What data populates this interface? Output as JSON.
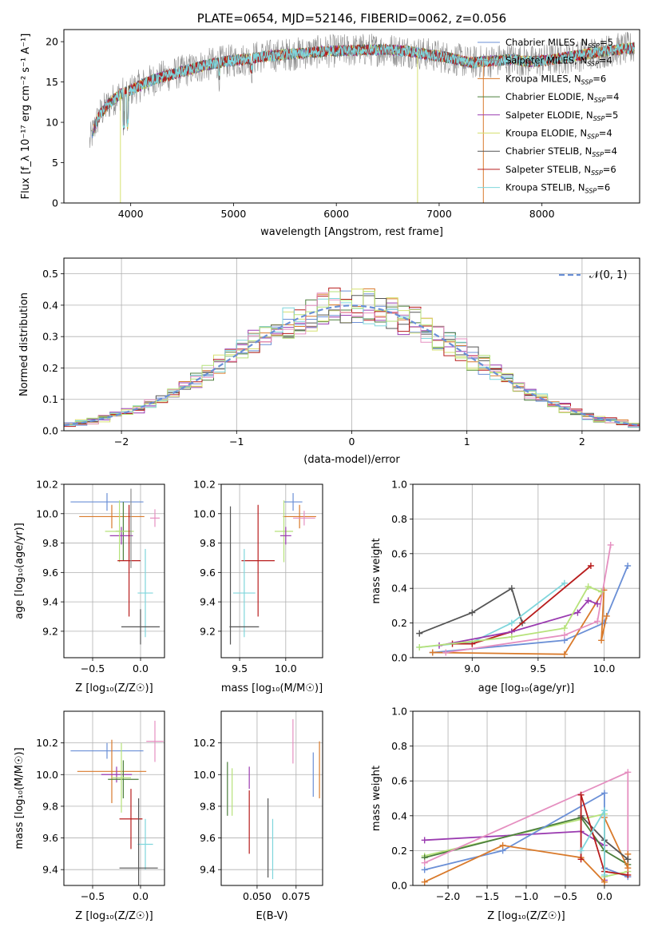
{
  "chart_data": [
    {
      "id": "spectrum",
      "type": "line",
      "title": "PLATE=0654, MJD=52146, FIBERID=0062, z=0.056",
      "xlabel": "wavelength [Angstrom, rest frame]",
      "ylabel": "Flux [f_λ 10⁻¹⁷ erg cm⁻² s⁻¹ A⁻¹]",
      "xlim": [
        3350,
        8950
      ],
      "ylim": [
        0,
        21.5
      ],
      "xticks": [
        4000,
        5000,
        6000,
        7000,
        8000
      ],
      "yticks": [
        0,
        5,
        10,
        15,
        20
      ],
      "legend_position": "top-right",
      "data_range": [
        3600,
        8900
      ],
      "continuum": {
        "x": [
          3600,
          3650,
          3700,
          3800,
          3900,
          4000,
          4100,
          4200,
          4300,
          4500,
          4700,
          4900,
          5100,
          5300,
          5500,
          5700,
          5900,
          6100,
          6300,
          6500,
          6700,
          6900,
          7100,
          7300,
          7500,
          7700,
          7900,
          8100,
          8300,
          8500,
          8700,
          8900
        ],
        "y": [
          7.5,
          9.5,
          11,
          12.5,
          13.5,
          14,
          14.6,
          15.2,
          15.6,
          16.3,
          17,
          17.5,
          17.8,
          18.2,
          18.4,
          18.6,
          18.8,
          18.9,
          19,
          19,
          18.8,
          18.4,
          18,
          17.4,
          17.6,
          17.8,
          17.5,
          17.8,
          18.2,
          18.6,
          19,
          19.2
        ]
      },
      "legend": [
        {
          "label": "Chabrier MILES, N",
          "sub": "SSP",
          "suffix": "=5",
          "color": "#6a8fd6"
        },
        {
          "label": "Salpeter MILES, N",
          "sub": "SSP",
          "suffix": "=4",
          "color": "#8e8e8e"
        },
        {
          "label": "Kroupa MILES, N",
          "sub": "SSP",
          "suffix": "=6",
          "color": "#d97a2b"
        },
        {
          "label": "Chabrier ELODIE, N",
          "sub": "SSP",
          "suffix": "=4",
          "color": "#4c7f3c"
        },
        {
          "label": "Salpeter ELODIE, N",
          "sub": "SSP",
          "suffix": "=5",
          "color": "#9a3bb0"
        },
        {
          "label": "Kroupa ELODIE, N",
          "sub": "SSP",
          "suffix": "=4",
          "color": "#d6e070"
        },
        {
          "label": "Chabrier STELIB, N",
          "sub": "SSP",
          "suffix": "=4",
          "color": "#555555"
        },
        {
          "label": "Salpeter STELIB, N",
          "sub": "SSP",
          "suffix": "=6",
          "color": "#b81c1c"
        },
        {
          "label": "Kroupa STELIB, N",
          "sub": "SSP",
          "suffix": "=6",
          "color": "#7fd6dc"
        }
      ]
    },
    {
      "id": "residuals",
      "type": "step-histogram",
      "xlabel": "(data-model)/error",
      "ylabel": "Normed distribution",
      "xlim": [
        -2.5,
        2.5
      ],
      "ylim": [
        0,
        0.55
      ],
      "xticks": [
        -2,
        -1,
        0,
        1,
        2
      ],
      "yticks": [
        0.0,
        0.1,
        0.2,
        0.3,
        0.4,
        0.5
      ],
      "legend_label": "𝒩(0, 1)",
      "legend_position": "top-right",
      "bin_width": 0.1,
      "series_colors": [
        "#6a8fd6",
        "#d97a2b",
        "#4c7f3c",
        "#9a3bb0",
        "#d6e070",
        "#555555",
        "#b81c1c",
        "#7fd6dc",
        "#e58fc0",
        "#b6e27a"
      ]
    },
    {
      "id": "age_vs_Z",
      "type": "errorbar",
      "xlabel": "Z [log₁₀(Z/Z☉)]",
      "ylabel": "age  [log₁₀(age/yr)]",
      "xlim": [
        -0.8,
        0.25
      ],
      "ylim": [
        9.02,
        10.2
      ],
      "xticks": [
        -0.5,
        0.0
      ],
      "yticks": [
        9.2,
        9.4,
        9.6,
        9.8,
        10.0,
        10.2
      ],
      "points": [
        {
          "color": "#6a8fd6",
          "x": -0.35,
          "xerr": 0.38,
          "y": 10.08,
          "yerr": 0.06
        },
        {
          "color": "#d97a2b",
          "x": -0.3,
          "xerr": 0.34,
          "y": 9.98,
          "yerr": 0.08
        },
        {
          "color": "#4c7f3c",
          "x": -0.18,
          "xerr": 0.08,
          "y": 9.88,
          "yerr": 0.2
        },
        {
          "color": "#9a3bb0",
          "x": -0.2,
          "xerr": 0.12,
          "y": 9.85,
          "yerr": 0.06
        },
        {
          "color": "#b6e27a",
          "x": -0.22,
          "xerr": 0.15,
          "y": 9.88,
          "yerr": 0.21
        },
        {
          "color": "#e58fc0",
          "x": 0.15,
          "xerr": 0.05,
          "y": 9.97,
          "yerr": 0.06
        },
        {
          "color": "#b81c1c",
          "x": -0.12,
          "xerr": 0.12,
          "y": 9.68,
          "yerr": 0.38
        },
        {
          "color": "#7fd6dc",
          "x": 0.05,
          "xerr": 0.08,
          "y": 9.46,
          "yerr": 0.3
        },
        {
          "color": "#555555",
          "x": 0.0,
          "xerr": 0.2,
          "y": 9.23,
          "yerr": 0.12
        },
        {
          "color": "#8e8e8e",
          "x": -0.1,
          "xerr": 0.0,
          "y": 9.9,
          "yerr": 0.27
        }
      ]
    },
    {
      "id": "age_vs_mass",
      "type": "errorbar",
      "xlabel": "mass [log₁₀(M/M☉)]",
      "ylabel": "",
      "xlim": [
        9.3,
        10.4
      ],
      "ylim": [
        9.02,
        10.2
      ],
      "xticks": [
        9.5,
        10.0
      ],
      "yticks": [
        9.2,
        9.4,
        9.6,
        9.8,
        10.0,
        10.2
      ],
      "points": [
        {
          "color": "#6a8fd6",
          "x": 10.08,
          "xerr": 0.1,
          "y": 10.08,
          "yerr": 0.06
        },
        {
          "color": "#d97a2b",
          "x": 10.15,
          "xerr": 0.18,
          "y": 9.98,
          "yerr": 0.08
        },
        {
          "color": "#e58fc0",
          "x": 10.2,
          "xerr": 0.12,
          "y": 9.97,
          "yerr": 0.05
        },
        {
          "color": "#b6e27a",
          "x": 9.98,
          "xerr": 0.1,
          "y": 9.88,
          "yerr": 0.21
        },
        {
          "color": "#9a3bb0",
          "x": 10.0,
          "xerr": 0.06,
          "y": 9.85,
          "yerr": 0.06
        },
        {
          "color": "#b81c1c",
          "x": 9.7,
          "xerr": 0.18,
          "y": 9.68,
          "yerr": 0.38
        },
        {
          "color": "#7fd6dc",
          "x": 9.55,
          "xerr": 0.12,
          "y": 9.46,
          "yerr": 0.3
        },
        {
          "color": "#555555",
          "x": 9.4,
          "xerr": 0.0,
          "y": 9.58,
          "yerr": 0.47
        },
        {
          "color": "#555555",
          "x": 9.55,
          "xerr": 0.16,
          "y": 9.23,
          "yerr": 0.0
        }
      ]
    },
    {
      "id": "massweight_vs_age",
      "type": "line",
      "xlabel": "age  [log₁₀(age/yr)]",
      "ylabel": "mass weight",
      "xlim": [
        8.55,
        10.27
      ],
      "ylim": [
        0,
        1
      ],
      "xticks": [
        9.0,
        9.5,
        10.0
      ],
      "yticks": [
        0.0,
        0.2,
        0.4,
        0.6,
        0.8,
        1.0
      ],
      "series": [
        {
          "color": "#555555",
          "x": [
            8.6,
            9.0,
            9.3,
            9.38
          ],
          "y": [
            0.14,
            0.26,
            0.4,
            0.2
          ]
        },
        {
          "color": "#7fd6dc",
          "x": [
            8.6,
            9.0,
            9.3,
            9.7
          ],
          "y": [
            0.06,
            0.09,
            0.2,
            0.43
          ]
        },
        {
          "color": "#b81c1c",
          "x": [
            8.85,
            9.0,
            9.3,
            9.9
          ],
          "y": [
            0.08,
            0.08,
            0.15,
            0.53
          ]
        },
        {
          "color": "#6a8fd6",
          "x": [
            8.7,
            9.7,
            10.0,
            10.18
          ],
          "y": [
            0.03,
            0.1,
            0.2,
            0.53
          ]
        },
        {
          "color": "#d97a2b",
          "x": [
            8.7,
            9.7,
            10.0,
            9.98,
            10.02
          ],
          "y": [
            0.03,
            0.02,
            0.39,
            0.1,
            0.24
          ]
        },
        {
          "color": "#e58fc0",
          "x": [
            8.8,
            9.7,
            9.95,
            10.05
          ],
          "y": [
            0.03,
            0.13,
            0.21,
            0.65
          ]
        },
        {
          "color": "#9a3bb0",
          "x": [
            8.75,
            9.3,
            9.8,
            9.88,
            9.95
          ],
          "y": [
            0.07,
            0.15,
            0.26,
            0.33,
            0.31
          ]
        },
        {
          "color": "#b6e27a",
          "x": [
            8.6,
            9.3,
            9.7,
            9.88,
            9.98
          ],
          "y": [
            0.06,
            0.12,
            0.17,
            0.41,
            0.38
          ]
        }
      ]
    },
    {
      "id": "mass_vs_Z",
      "type": "errorbar",
      "xlabel": "Z [log₁₀(Z/Z☉)]",
      "ylabel": "mass [log₁₀(M/M☉)]",
      "xlim": [
        -0.8,
        0.25
      ],
      "ylim": [
        9.3,
        10.4
      ],
      "xticks": [
        -0.5,
        0.0
      ],
      "yticks": [
        9.4,
        9.6,
        9.8,
        10.0,
        10.2
      ],
      "points": [
        {
          "color": "#6a8fd6",
          "x": -0.35,
          "xerr": 0.38,
          "y": 10.15,
          "yerr": 0.05
        },
        {
          "color": "#d97a2b",
          "x": -0.3,
          "xerr": 0.36,
          "y": 10.02,
          "yerr": 0.2
        },
        {
          "color": "#9a3bb0",
          "x": -0.25,
          "xerr": 0.16,
          "y": 10.0,
          "yerr": 0.05
        },
        {
          "color": "#4c7f3c",
          "x": -0.18,
          "xerr": 0.16,
          "y": 9.97,
          "yerr": 0.12
        },
        {
          "color": "#b6e27a",
          "x": -0.2,
          "xerr": 0.1,
          "y": 9.98,
          "yerr": 0.22
        },
        {
          "color": "#e58fc0",
          "x": 0.15,
          "xerr": 0.09,
          "y": 10.21,
          "yerr": 0.13
        },
        {
          "color": "#b81c1c",
          "x": -0.1,
          "xerr": 0.12,
          "y": 9.72,
          "yerr": 0.19
        },
        {
          "color": "#7fd6dc",
          "x": 0.05,
          "xerr": 0.08,
          "y": 9.56,
          "yerr": 0.16
        },
        {
          "color": "#555555",
          "x": -0.02,
          "xerr": 0.2,
          "y": 9.41,
          "yerr": 0.44
        }
      ]
    },
    {
      "id": "mass_vs_EBV",
      "type": "errorbar",
      "xlabel": "E(B-V)",
      "ylabel": "",
      "xlim": [
        0.027,
        0.092
      ],
      "ylim": [
        9.3,
        10.4
      ],
      "xticks": [
        0.05,
        0.075
      ],
      "yticks": [
        9.4,
        9.6,
        9.8,
        10.0,
        10.2
      ],
      "points": [
        {
          "color": "#6a8fd6",
          "x": 0.086,
          "xerr": 0.0,
          "y": 10.0,
          "yerr": 0.14
        },
        {
          "color": "#d97a2b",
          "x": 0.09,
          "xerr": 0.0,
          "y": 10.03,
          "yerr": 0.18
        },
        {
          "color": "#e58fc0",
          "x": 0.073,
          "xerr": 0.0,
          "y": 10.21,
          "yerr": 0.14
        },
        {
          "color": "#4c7f3c",
          "x": 0.031,
          "xerr": 0.0,
          "y": 9.91,
          "yerr": 0.17
        },
        {
          "color": "#b6e27a",
          "x": 0.034,
          "xerr": 0.0,
          "y": 9.89,
          "yerr": 0.15
        },
        {
          "color": "#9a3bb0",
          "x": 0.045,
          "xerr": 0.0,
          "y": 9.98,
          "yerr": 0.07
        },
        {
          "color": "#b81c1c",
          "x": 0.045,
          "xerr": 0.0,
          "y": 9.7,
          "yerr": 0.2
        },
        {
          "color": "#555555",
          "x": 0.057,
          "xerr": 0.0,
          "y": 9.6,
          "yerr": 0.25
        },
        {
          "color": "#7fd6dc",
          "x": 0.06,
          "xerr": 0.0,
          "y": 9.53,
          "yerr": 0.19
        }
      ]
    },
    {
      "id": "massweight_vs_Z",
      "type": "line",
      "xlabel": "Z [log₁₀(Z/Z☉)]",
      "ylabel": "mass weight",
      "xlim": [
        -2.45,
        0.45
      ],
      "ylim": [
        0,
        1
      ],
      "xticks": [
        -2.0,
        -1.5,
        -1.0,
        -0.5,
        0.0
      ],
      "yticks": [
        0.0,
        0.2,
        0.4,
        0.6,
        0.8,
        1.0
      ],
      "series": [
        {
          "color": "#9a3bb0",
          "x": [
            -2.3,
            -0.3,
            0.0,
            0.0
          ],
          "y": [
            0.26,
            0.31,
            0.23,
            0.03
          ]
        },
        {
          "color": "#b6e27a",
          "x": [
            -2.3,
            -0.3,
            0.0,
            0.0,
            0.3
          ],
          "y": [
            0.17,
            0.38,
            0.41,
            0.05,
            0.08
          ]
        },
        {
          "color": "#4c7f3c",
          "x": [
            -2.3,
            -0.3,
            0.0,
            0.3
          ],
          "y": [
            0.16,
            0.39,
            0.2,
            0.12
          ]
        },
        {
          "color": "#e58fc0",
          "x": [
            -2.3,
            0.3,
            0.3
          ],
          "y": [
            0.13,
            0.65,
            0.05
          ]
        },
        {
          "color": "#6a8fd6",
          "x": [
            -2.3,
            -1.3,
            0.0,
            0.0,
            0.3
          ],
          "y": [
            0.09,
            0.2,
            0.53,
            0.1,
            0.05
          ]
        },
        {
          "color": "#d97a2b",
          "x": [
            -2.3,
            -1.3,
            -0.3,
            0.0,
            0.0,
            0.3,
            0.3
          ],
          "y": [
            0.02,
            0.23,
            0.16,
            0.02,
            0.39,
            0.1,
            0.18
          ]
        },
        {
          "color": "#555555",
          "x": [
            -0.3,
            0.0,
            0.3
          ],
          "y": [
            0.4,
            0.26,
            0.15
          ]
        },
        {
          "color": "#b81c1c",
          "x": [
            -0.3,
            -0.3,
            0.0,
            0.3
          ],
          "y": [
            0.15,
            0.52,
            0.08,
            0.06
          ]
        },
        {
          "color": "#7fd6dc",
          "x": [
            -0.3,
            0.0,
            0.0
          ],
          "y": [
            0.2,
            0.43,
            0.06
          ]
        }
      ]
    }
  ]
}
